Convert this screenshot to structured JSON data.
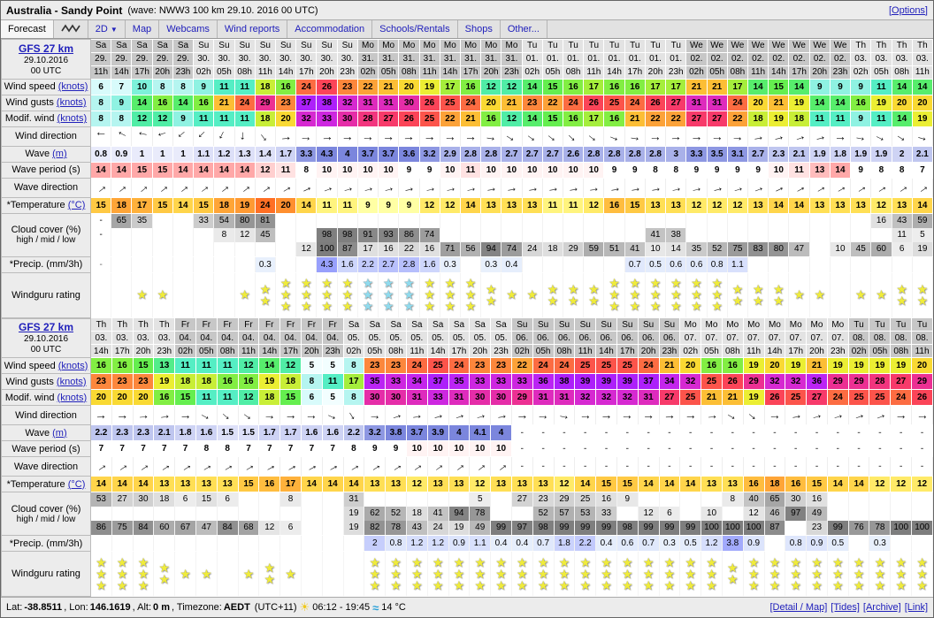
{
  "palette": {
    "link_blue": "#2020bb",
    "star_yellow": "#f0ec3a",
    "star_cyan": "#8fdbee",
    "header_dark": "#c7c7c7",
    "header_light": "#e3e3e3"
  },
  "header": {
    "title": "Australia - Sandy Point",
    "subtitle": "(wave: NWW3 100 km 29.10. 2016 00 UTC)",
    "options_label": "[Options]"
  },
  "tabs": {
    "forecast": "Forecast",
    "two_d": "2D",
    "items": [
      "Map",
      "Webcams",
      "Wind reports",
      "Accommodation",
      "Schools/Rentals",
      "Shops",
      "Other..."
    ]
  },
  "row_labels": {
    "wind_speed": {
      "text": "Wind speed ",
      "link": "(knots)"
    },
    "wind_gusts": {
      "text": "Wind gusts ",
      "link": "(knots)"
    },
    "wind_modif": {
      "text": "Modif. wind ",
      "link": "(knots)"
    },
    "wind_dir": {
      "text": "Wind direction"
    },
    "wave": {
      "text": "Wave ",
      "link": "(m)"
    },
    "wave_period": {
      "text": "Wave period (s)"
    },
    "wave_dir": {
      "text": "Wave direction"
    },
    "temperature": {
      "text": "*Temperature ",
      "link": "(°C)"
    },
    "cloud": {
      "text": "Cloud cover (%)",
      "text2": "high / mid / low"
    },
    "precip": {
      "text": "*Precip. (mm/3h)"
    },
    "rating": {
      "text": "Windguru rating"
    }
  },
  "tables": [
    {
      "model": "GFS 27 km",
      "run": "29.10.2016",
      "utc": "00 UTC",
      "days": [
        {
          "name": "Sa",
          "date": "29.",
          "shade": "dk",
          "hours": [
            "11h",
            "14h",
            "17h",
            "20h",
            "23h"
          ]
        },
        {
          "name": "Su",
          "date": "30.",
          "shade": "lt",
          "hours": [
            "02h",
            "05h",
            "08h",
            "11h",
            "14h",
            "17h",
            "20h",
            "23h"
          ]
        },
        {
          "name": "Mo",
          "date": "31.",
          "shade": "dk",
          "hours": [
            "02h",
            "05h",
            "08h",
            "11h",
            "14h",
            "17h",
            "20h",
            "23h"
          ]
        },
        {
          "name": "Tu",
          "date": "01.",
          "shade": "lt",
          "hours": [
            "02h",
            "05h",
            "08h",
            "11h",
            "14h",
            "17h",
            "20h",
            "23h"
          ]
        },
        {
          "name": "We",
          "date": "02.",
          "shade": "dk",
          "hours": [
            "02h",
            "05h",
            "08h",
            "11h",
            "14h",
            "17h",
            "20h",
            "23h"
          ]
        },
        {
          "name": "Th",
          "date": "03.",
          "shade": "lt",
          "hours": [
            "02h",
            "05h",
            "08h",
            "11h"
          ]
        }
      ],
      "wind_speed": [
        6,
        7,
        10,
        8,
        8,
        9,
        11,
        11,
        18,
        16,
        24,
        26,
        23,
        22,
        21,
        20,
        19,
        17,
        16,
        12,
        12,
        14,
        15,
        16,
        17,
        16,
        16,
        17,
        17,
        21,
        21,
        17,
        14,
        15,
        14,
        9,
        9,
        9,
        11,
        14,
        14
      ],
      "wind_gusts": [
        8,
        9,
        14,
        16,
        14,
        16,
        21,
        24,
        29,
        23,
        37,
        38,
        32,
        31,
        31,
        30,
        26,
        25,
        24,
        20,
        21,
        23,
        22,
        24,
        26,
        25,
        24,
        26,
        27,
        31,
        31,
        24,
        20,
        21,
        19,
        14,
        14,
        16,
        19,
        20,
        20
      ],
      "wind_modif": [
        8,
        8,
        12,
        12,
        9,
        11,
        11,
        11,
        18,
        20,
        32,
        33,
        30,
        28,
        27,
        26,
        25,
        22,
        21,
        16,
        12,
        14,
        15,
        16,
        17,
        16,
        21,
        22,
        22,
        27,
        27,
        22,
        18,
        19,
        18,
        11,
        11,
        9,
        11,
        14,
        19
      ],
      "wind_dir": [
        183,
        207,
        192,
        162,
        140,
        136,
        116,
        95,
        52,
        355,
        5,
        358,
        0,
        2,
        0,
        358,
        0,
        2,
        0,
        8,
        32,
        36,
        38,
        44,
        38,
        22,
        8,
        2,
        358,
        0,
        2,
        4,
        350,
        346,
        342,
        346,
        0,
        10,
        26,
        32,
        16
      ],
      "wave": [
        0.8,
        0.9,
        1,
        1,
        1,
        1.1,
        1.2,
        1.3,
        1.4,
        1.7,
        3.3,
        4.3,
        4,
        3.7,
        3.7,
        3.6,
        3.2,
        2.9,
        2.8,
        2.8,
        2.7,
        2.7,
        2.7,
        2.6,
        2.8,
        2.8,
        2.8,
        2.8,
        3,
        3.3,
        3.5,
        3.1,
        2.7,
        2.3,
        2.1,
        1.9,
        1.8,
        1.9,
        1.9,
        2,
        2.1
      ],
      "wave_period": [
        14,
        14,
        15,
        15,
        14,
        14,
        14,
        14,
        12,
        11,
        8,
        10,
        10,
        10,
        10,
        9,
        9,
        10,
        11,
        10,
        10,
        10,
        10,
        10,
        10,
        9,
        9,
        8,
        8,
        9,
        9,
        9,
        9,
        10,
        11,
        13,
        14,
        9,
        8,
        8,
        7
      ],
      "wave_dir": [
        322,
        322,
        320,
        322,
        322,
        324,
        322,
        322,
        325,
        330,
        335,
        340,
        345,
        345,
        345,
        347,
        348,
        348,
        348,
        350,
        350,
        350,
        350,
        350,
        352,
        350,
        350,
        350,
        348,
        348,
        346,
        344,
        340,
        335,
        332,
        330,
        330,
        328,
        328,
        326,
        325
      ],
      "temperature": [
        15,
        18,
        17,
        15,
        14,
        15,
        18,
        19,
        24,
        20,
        14,
        11,
        11,
        9,
        9,
        9,
        12,
        12,
        14,
        13,
        13,
        13,
        11,
        11,
        12,
        16,
        15,
        13,
        13,
        12,
        12,
        12,
        13,
        14,
        14,
        13,
        13,
        13,
        12,
        13,
        14
      ],
      "cloud_high": [
        "-",
        "65",
        "35",
        "",
        "",
        "33",
        "54",
        "80",
        "81",
        "",
        "",
        "",
        "",
        "",
        "",
        "",
        "",
        "",
        "",
        "",
        "",
        "",
        "",
        "",
        "",
        "",
        "",
        "",
        "",
        "",
        "",
        "",
        "",
        "",
        "",
        "",
        "",
        "",
        "16",
        "43",
        "59"
      ],
      "cloud_mid": [
        "-",
        "",
        "",
        "",
        "",
        "",
        "8",
        "12",
        "45",
        "",
        "",
        "98",
        "98",
        "91",
        "93",
        "86",
        "74",
        "",
        "",
        "",
        "",
        "",
        "",
        "",
        "",
        "",
        "",
        "41",
        "38",
        "",
        "",
        "",
        "",
        "",
        "",
        "",
        "",
        "",
        "",
        "11",
        "5"
      ],
      "cloud_low": [
        "",
        "",
        "",
        "",
        "",
        "",
        "",
        "",
        "",
        "",
        "12",
        "100",
        "87",
        "17",
        "16",
        "22",
        "16",
        "71",
        "56",
        "94",
        "74",
        "24",
        "18",
        "29",
        "59",
        "51",
        "41",
        "10",
        "14",
        "35",
        "52",
        "75",
        "83",
        "80",
        "47",
        "",
        "10",
        "45",
        "60",
        "6",
        "19"
      ],
      "precip": [
        "-",
        "",
        "",
        "",
        "",
        "",
        "",
        "",
        "0.3",
        "",
        "",
        "4.3",
        "1.6",
        "2.2",
        "2.7",
        "2.8",
        "1.6",
        "0.3",
        "",
        "0.3",
        "0.4",
        "",
        "",
        "",
        "",
        "",
        "0.7",
        "0.5",
        "0.6",
        "0.6",
        "0.8",
        "1.1",
        "",
        "",
        "",
        "",
        "",
        "",
        "",
        "",
        ""
      ],
      "rating": [
        "",
        "",
        "1",
        "1",
        "",
        "",
        "",
        "1",
        "2",
        "3",
        "3",
        "3",
        "3",
        "3c",
        "3c",
        "3c",
        "3",
        "3",
        "3",
        "2",
        "1",
        "1",
        "2",
        "2",
        "2",
        "3",
        "3",
        "3",
        "3",
        "3",
        "3",
        "2",
        "2",
        "2",
        "1",
        "1",
        "",
        "1",
        "1",
        "2",
        "2"
      ]
    },
    {
      "model": "GFS 27 km",
      "run": "29.10.2016",
      "utc": "00 UTC",
      "days": [
        {
          "name": "Th",
          "date": "03.",
          "shade": "lt",
          "hours": [
            "14h",
            "17h",
            "20h",
            "23h"
          ]
        },
        {
          "name": "Fr",
          "date": "04.",
          "shade": "dk",
          "hours": [
            "02h",
            "05h",
            "08h",
            "11h",
            "14h",
            "17h",
            "20h",
            "23h"
          ]
        },
        {
          "name": "Sa",
          "date": "05.",
          "shade": "lt",
          "hours": [
            "02h",
            "05h",
            "08h",
            "11h",
            "14h",
            "17h",
            "20h",
            "23h"
          ]
        },
        {
          "name": "Su",
          "date": "06.",
          "shade": "dk",
          "hours": [
            "02h",
            "05h",
            "08h",
            "11h",
            "14h",
            "17h",
            "20h",
            "23h"
          ]
        },
        {
          "name": "Mo",
          "date": "07.",
          "shade": "lt",
          "hours": [
            "02h",
            "05h",
            "08h",
            "11h",
            "14h",
            "17h",
            "20h",
            "23h"
          ]
        },
        {
          "name": "Tu",
          "date": "08.",
          "shade": "dk",
          "hours": [
            "02h",
            "05h",
            "08h",
            "11h"
          ]
        }
      ],
      "wind_speed": [
        16,
        16,
        15,
        13,
        11,
        11,
        11,
        12,
        14,
        12,
        5,
        5,
        8,
        23,
        23,
        24,
        25,
        24,
        23,
        23,
        22,
        24,
        24,
        25,
        25,
        25,
        24,
        21,
        20,
        16,
        16,
        19,
        20,
        19,
        21,
        19,
        19,
        19,
        19,
        20
      ],
      "wind_gusts": [
        23,
        23,
        23,
        19,
        18,
        18,
        16,
        16,
        19,
        18,
        8,
        11,
        17,
        35,
        33,
        34,
        37,
        35,
        33,
        33,
        33,
        36,
        38,
        39,
        39,
        39,
        37,
        34,
        32,
        25,
        26,
        29,
        32,
        32,
        36,
        29,
        29,
        28,
        27,
        29
      ],
      "wind_modif": [
        20,
        20,
        20,
        16,
        15,
        11,
        11,
        12,
        18,
        15,
        6,
        5,
        8,
        30,
        30,
        31,
        33,
        31,
        30,
        30,
        29,
        31,
        31,
        32,
        32,
        32,
        31,
        27,
        25,
        21,
        21,
        19,
        26,
        25,
        27,
        24,
        25,
        25,
        24,
        26
      ],
      "wind_dir": [
        358,
        0,
        356,
        352,
        0,
        28,
        42,
        36,
        6,
        0,
        2,
        24,
        58,
        6,
        342,
        352,
        346,
        342,
        345,
        350,
        0,
        5,
        12,
        2,
        0,
        2,
        0,
        358,
        0,
        356,
        30,
        40,
        2,
        350,
        345,
        345,
        342,
        340,
        0,
        2
      ],
      "wave": [
        2.2,
        2.3,
        2.3,
        2.1,
        1.8,
        1.6,
        1.5,
        1.5,
        1.7,
        1.7,
        1.6,
        1.6,
        2.2,
        3.2,
        3.8,
        3.7,
        3.9,
        4,
        4.1,
        4,
        "-",
        "-",
        "-",
        "-",
        "-",
        "-",
        "-",
        "-",
        "-",
        "-",
        "-",
        "-",
        "-",
        "-",
        "-",
        "-",
        "-",
        "-",
        "-",
        "-"
      ],
      "wave_period": [
        7,
        7,
        7,
        7,
        7,
        8,
        8,
        7,
        7,
        7,
        7,
        7,
        8,
        9,
        9,
        10,
        10,
        10,
        10,
        10,
        "-",
        "-",
        "-",
        "-",
        "-",
        "-",
        "-",
        "-",
        "-",
        "-",
        "-",
        "-",
        "-",
        "-",
        "-",
        "-",
        "-",
        "-",
        "-",
        "-"
      ],
      "wave_dir": [
        326,
        326,
        326,
        328,
        328,
        330,
        330,
        330,
        332,
        332,
        332,
        332,
        330,
        328,
        328,
        326,
        324,
        322,
        322,
        322,
        null,
        null,
        null,
        null,
        null,
        null,
        null,
        null,
        null,
        null,
        null,
        null,
        null,
        null,
        null,
        null,
        null,
        null,
        null,
        null
      ],
      "temperature": [
        14,
        14,
        14,
        13,
        13,
        13,
        13,
        15,
        16,
        17,
        14,
        14,
        14,
        13,
        13,
        12,
        13,
        13,
        12,
        13,
        13,
        13,
        12,
        14,
        15,
        15,
        14,
        14,
        14,
        13,
        13,
        16,
        18,
        16,
        15,
        14,
        14,
        12,
        12,
        12
      ],
      "cloud_high": [
        "53",
        "27",
        "30",
        "18",
        "6",
        "15",
        "6",
        "",
        "",
        "8",
        "",
        "",
        "31",
        "",
        "",
        "",
        "",
        "",
        "5",
        "",
        "27",
        "23",
        "29",
        "25",
        "16",
        "9",
        "",
        "",
        "",
        "",
        "8",
        "40",
        "65",
        "30",
        "16",
        "",
        "",
        "",
        "",
        ""
      ],
      "cloud_mid": [
        "",
        "",
        "",
        "",
        "",
        "",
        "",
        "",
        "",
        "",
        "",
        "",
        "19",
        "62",
        "52",
        "18",
        "41",
        "94",
        "78",
        "",
        "",
        "52",
        "57",
        "53",
        "33",
        "",
        "12",
        "6",
        "",
        "10",
        "",
        "12",
        "46",
        "97",
        "49",
        "",
        "",
        "",
        "",
        ""
      ],
      "cloud_low": [
        "86",
        "75",
        "84",
        "60",
        "67",
        "47",
        "84",
        "68",
        "12",
        "6",
        "",
        "",
        "19",
        "82",
        "78",
        "43",
        "24",
        "19",
        "49",
        "99",
        "97",
        "98",
        "99",
        "99",
        "99",
        "98",
        "99",
        "99",
        "99",
        "100",
        "100",
        "100",
        "87",
        "",
        "23",
        "99",
        "76",
        "78",
        "100",
        "100"
      ],
      "precip": [
        "",
        "",
        "",
        "",
        "",
        "",
        "",
        "",
        "",
        "",
        "",
        "",
        "",
        "2",
        "0.8",
        "1.2",
        "1.2",
        "0.9",
        "1.1",
        "0.4",
        "0.4",
        "0.7",
        "1.8",
        "2.2",
        "0.4",
        "0.6",
        "0.7",
        "0.3",
        "0.5",
        "1.2",
        "3.8",
        "0.9",
        "",
        "0.8",
        "0.9",
        "0.5",
        "",
        "0.3",
        "",
        ""
      ],
      "rating": [
        "3",
        "3",
        "3",
        "2",
        "1",
        "1",
        "",
        "1",
        "2",
        "1",
        "",
        "",
        "",
        "3",
        "3",
        "3",
        "3",
        "3",
        "3",
        "3",
        "3",
        "3",
        "3",
        "3",
        "3",
        "3",
        "3",
        "3",
        "3",
        "3",
        "2",
        "3",
        "3",
        "3",
        "3",
        "3",
        "3",
        "3",
        "3",
        "3"
      ]
    }
  ],
  "footer": {
    "lat_label": "Lat:",
    "lat": "-38.8511",
    "lon_label": ", Lon:",
    "lon": "146.1619",
    "alt_label": ", Alt:",
    "alt": "0 m",
    "tz_label": ", Timezone:",
    "tz": "AEDT",
    "tz_offset": "(UTC+11)",
    "sun_times": "06:12 - 19:45",
    "sea_temp": "14 °C",
    "links": [
      "[Detail / Map]",
      "[Tides]",
      "[Archive]",
      "[Link]"
    ]
  }
}
